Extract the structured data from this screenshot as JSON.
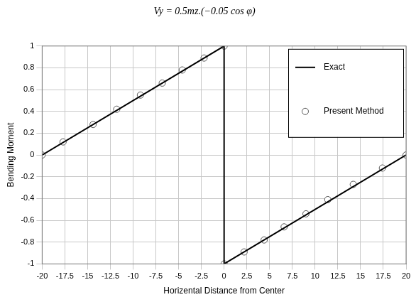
{
  "chart_data": {
    "type": "line",
    "title": "Vy = 0.5mz.(−0.05 cos φ)",
    "x_label": "Horizental Distance from Center",
    "y_label": "Bending Moment",
    "xlim": [
      -20,
      20
    ],
    "xticks": [
      -20,
      -17.5,
      -15,
      -12.5,
      -10,
      -7.5,
      -5,
      -2.5,
      0,
      2.5,
      5,
      7.5,
      10,
      12.5,
      15,
      17.5,
      20
    ],
    "ylim": [
      -1,
      1
    ],
    "yticks": [
      -1,
      -0.8,
      -0.6,
      -0.4,
      -0.2,
      0,
      0.2,
      0.4,
      0.6,
      0.8,
      1
    ],
    "grid": true,
    "legend": "upper right",
    "series": [
      {
        "name": "Exact",
        "type": "line",
        "color": "#000000",
        "marker": "none",
        "line_style": "solid",
        "x": [
          -20,
          0,
          0,
          20
        ],
        "values": [
          0,
          1,
          -1,
          0
        ]
      },
      {
        "name": "Present Method",
        "type": "scatter",
        "color": "#555555",
        "marker": "circle",
        "line_style": "none",
        "x": [
          -20,
          -17.7,
          -14.4,
          -11.8,
          -9.2,
          -6.8,
          -4.6,
          -2.2,
          0,
          0,
          2.2,
          4.4,
          6.6,
          9,
          11.4,
          14.2,
          17.4,
          20
        ],
        "values": [
          0,
          0.12,
          0.28,
          0.42,
          0.55,
          0.66,
          0.78,
          0.89,
          1,
          -1,
          -0.89,
          -0.78,
          -0.66,
          -0.54,
          -0.41,
          -0.27,
          -0.12,
          0
        ]
      }
    ]
  }
}
